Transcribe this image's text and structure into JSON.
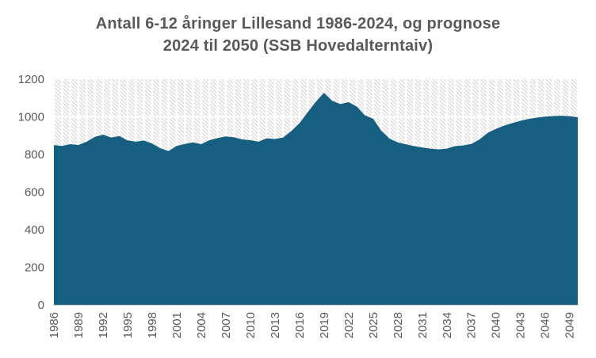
{
  "title": {
    "line1": "Antall 6-12 åringer Lillesand 1986-2024, og prognose",
    "line2": "2024 til 2050 (SSB Hovedalterntaiv)"
  },
  "colors": {
    "area_fill": "#175F80",
    "hatch_line": "#DCDCDC",
    "grid_white": "#FFFFFF",
    "axis_line": "#D9D9D9",
    "text": "#595959",
    "background": "#FFFFFF"
  },
  "chart_data": {
    "type": "area",
    "title": "Antall 6-12 åringer Lillesand 1986-2024, og prognose 2024 til 2050 (SSB Hovedalterntaiv)",
    "series_name": "Antall 6-12 åringer",
    "x": [
      1986,
      1987,
      1988,
      1989,
      1990,
      1991,
      1992,
      1993,
      1994,
      1995,
      1996,
      1997,
      1998,
      1999,
      2000,
      2001,
      2002,
      2003,
      2004,
      2005,
      2006,
      2007,
      2008,
      2009,
      2010,
      2011,
      2012,
      2013,
      2014,
      2015,
      2016,
      2017,
      2018,
      2019,
      2020,
      2021,
      2022,
      2023,
      2024,
      2025,
      2026,
      2027,
      2028,
      2029,
      2030,
      2031,
      2032,
      2033,
      2034,
      2035,
      2036,
      2037,
      2038,
      2039,
      2040,
      2041,
      2042,
      2043,
      2044,
      2045,
      2046,
      2047,
      2048,
      2049,
      2050
    ],
    "values": [
      850,
      845,
      855,
      850,
      868,
      893,
      905,
      890,
      898,
      875,
      868,
      874,
      858,
      833,
      818,
      845,
      856,
      864,
      855,
      876,
      887,
      896,
      891,
      880,
      876,
      868,
      886,
      882,
      890,
      924,
      966,
      1024,
      1080,
      1128,
      1085,
      1068,
      1078,
      1055,
      1008,
      990,
      926,
      884,
      864,
      854,
      844,
      837,
      831,
      827,
      831,
      844,
      848,
      856,
      880,
      915,
      936,
      953,
      967,
      979,
      989,
      996,
      1001,
      1004,
      1006,
      1003,
      998
    ],
    "x_ticks": [
      1986,
      1989,
      1992,
      1995,
      1998,
      2001,
      2004,
      2007,
      2010,
      2013,
      2016,
      2019,
      2022,
      2025,
      2028,
      2031,
      2034,
      2037,
      2040,
      2043,
      2046,
      2049
    ],
    "y_ticks": [
      0,
      200,
      400,
      600,
      800,
      1000,
      1200
    ],
    "xlim": [
      1986,
      2050
    ],
    "ylim": [
      0,
      1200
    ],
    "x_tick_rotation": -90,
    "gridlines": "horizontal white lines over hatched plot background, vertical white column gaps per year",
    "legend_position": "none"
  }
}
